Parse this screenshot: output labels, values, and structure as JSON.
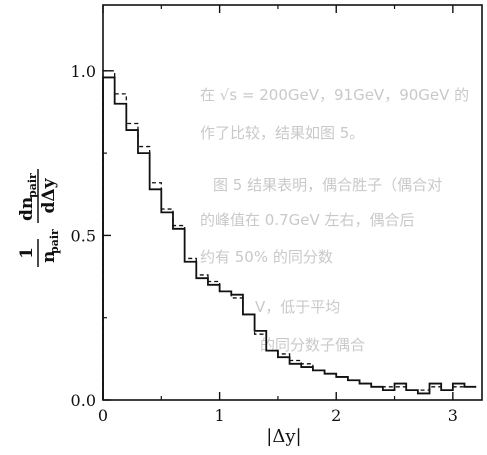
{
  "chart_data": {
    "type": "line",
    "xlabel": "|Δy|",
    "ylabel": {
      "fraction1_num": "1",
      "fraction1_den": "n",
      "fraction1_den_sub": "pair",
      "fraction2_num": "dn",
      "fraction2_num_sub": "pair",
      "fraction2_den": "dΔy"
    },
    "xlim": [
      0,
      3.25
    ],
    "ylim": [
      0,
      1.2
    ],
    "xticks": [
      0,
      1,
      2,
      3
    ],
    "xtick_labels": [
      "0",
      "1",
      "2",
      "3"
    ],
    "yticks": [
      0,
      0.5,
      1.0
    ],
    "ytick_labels": [
      "0.0",
      "0.5",
      "1.0"
    ],
    "bin_edges": [
      0,
      0.1,
      0.2,
      0.3,
      0.4,
      0.5,
      0.6,
      0.7,
      0.8,
      0.9,
      1.0,
      1.1,
      1.2,
      1.3,
      1.4,
      1.5,
      1.6,
      1.7,
      1.8,
      1.9,
      2.0,
      2.1,
      2.2,
      2.3,
      2.4,
      2.5,
      2.6,
      2.7,
      2.8,
      2.9,
      3.0,
      3.1,
      3.2
    ],
    "series": [
      {
        "style": "solid",
        "values": [
          0.98,
          0.9,
          0.82,
          0.75,
          0.64,
          0.57,
          0.52,
          0.42,
          0.37,
          0.35,
          0.33,
          0.32,
          0.26,
          0.21,
          0.15,
          0.13,
          0.11,
          0.1,
          0.09,
          0.08,
          0.07,
          0.06,
          0.05,
          0.04,
          0.03,
          0.05,
          0.03,
          0.02,
          0.05,
          0.03,
          0.05,
          0.04
        ]
      },
      {
        "style": "dashed",
        "values": [
          1.0,
          0.93,
          0.84,
          0.77,
          0.66,
          0.58,
          0.53,
          0.43,
          0.38,
          0.36,
          0.33,
          0.31,
          0.26,
          0.2,
          0.15,
          0.14,
          0.12,
          0.11,
          0.09,
          0.08,
          0.07,
          0.06,
          0.05,
          0.04,
          0.04,
          0.04,
          0.03,
          0.03,
          0.04,
          0.03,
          0.04,
          0.04
        ]
      }
    ],
    "grid": false,
    "legend": false
  },
  "background_text": [
    "在 √s = 200GeV，91GeV，90GeV 的",
    "作了比较，结果如图 5。",
    "图 5 结果表明，偶合胜子（偶合对",
    "的峰值在 0.7GeV 左右，偶合后",
    "约有 50% 的同分数",
    "V，低于平均",
    "的同分数子偶合"
  ]
}
